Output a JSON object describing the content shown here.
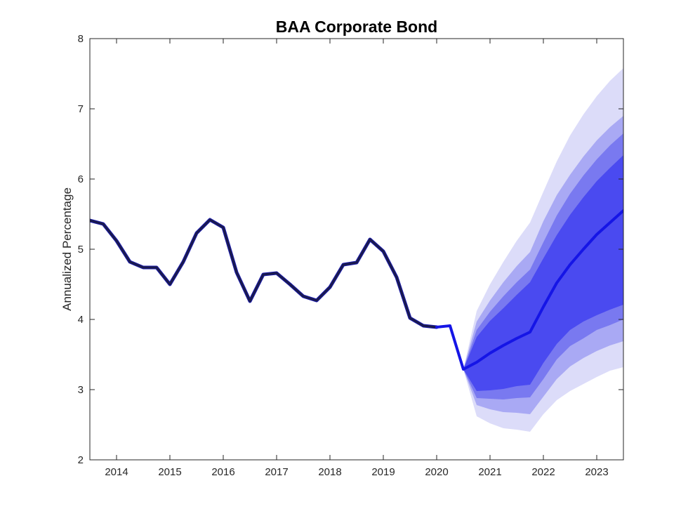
{
  "chart_data": {
    "type": "line",
    "title": "BAA Corporate Bond",
    "xlabel": "",
    "ylabel": "Annualized Percentage",
    "xlim": [
      2013.5,
      2023.5
    ],
    "ylim": [
      2,
      8
    ],
    "xticks": [
      2014,
      2015,
      2016,
      2017,
      2018,
      2019,
      2020,
      2021,
      2022,
      2023
    ],
    "yticks": [
      2,
      3,
      4,
      5,
      6,
      7,
      8
    ],
    "grid": false,
    "legend": "none",
    "series": [
      {
        "role": "history",
        "color": "#1a1a4d",
        "x": [
          2013.5,
          2013.75,
          2014.0,
          2014.25,
          2014.5,
          2014.75,
          2015.0,
          2015.25,
          2015.5,
          2015.75,
          2016.0,
          2016.25,
          2016.5,
          2016.75,
          2017.0,
          2017.25,
          2017.5,
          2017.75,
          2018.0,
          2018.25,
          2018.5,
          2018.75,
          2019.0,
          2019.25,
          2019.5,
          2019.75,
          2020.0
        ],
        "y": [
          5.41,
          5.36,
          5.12,
          4.82,
          4.74,
          4.74,
          4.5,
          4.82,
          5.23,
          5.42,
          5.31,
          4.67,
          4.26,
          4.64,
          4.66,
          4.5,
          4.33,
          4.27,
          4.46,
          4.78,
          4.81,
          5.14,
          4.97,
          4.6,
          4.02,
          3.91,
          3.89
        ]
      },
      {
        "role": "forecast-median",
        "color": "#1515e6",
        "x": [
          2020.0,
          2020.25,
          2020.5,
          2020.75,
          2021.0,
          2021.25,
          2021.5,
          2021.75,
          2022.0,
          2022.25,
          2022.5,
          2022.75,
          2023.0,
          2023.25,
          2023.5
        ],
        "y": [
          3.89,
          3.91,
          3.29,
          3.39,
          3.52,
          3.63,
          3.73,
          3.82,
          4.18,
          4.52,
          4.78,
          5.0,
          5.21,
          5.38,
          5.55
        ]
      }
    ],
    "bands": [
      {
        "color": "#dcdcf9",
        "x": [
          2020.5,
          2020.75,
          2021.0,
          2021.25,
          2021.5,
          2021.75,
          2022.0,
          2022.25,
          2022.5,
          2022.75,
          2023.0,
          2023.25,
          2023.5
        ],
        "lower": [
          3.29,
          2.62,
          2.52,
          2.45,
          2.43,
          2.4,
          2.65,
          2.85,
          2.98,
          3.08,
          3.18,
          3.27,
          3.32
        ],
        "upper": [
          3.29,
          4.12,
          4.5,
          4.82,
          5.12,
          5.38,
          5.82,
          6.25,
          6.62,
          6.92,
          7.18,
          7.4,
          7.58
        ]
      },
      {
        "color": "#a9a9f4",
        "x": [
          2020.5,
          2020.75,
          2021.0,
          2021.25,
          2021.5,
          2021.75,
          2022.0,
          2022.25,
          2022.5,
          2022.75,
          2023.0,
          2023.25,
          2023.5
        ],
        "lower": [
          3.29,
          2.78,
          2.72,
          2.68,
          2.67,
          2.65,
          2.9,
          3.15,
          3.33,
          3.45,
          3.55,
          3.63,
          3.69
        ],
        "upper": [
          3.29,
          3.97,
          4.27,
          4.53,
          4.76,
          4.96,
          5.4,
          5.77,
          6.06,
          6.32,
          6.55,
          6.74,
          6.9
        ]
      },
      {
        "color": "#7979f0",
        "x": [
          2020.5,
          2020.75,
          2021.0,
          2021.25,
          2021.5,
          2021.75,
          2022.0,
          2022.25,
          2022.5,
          2022.75,
          2023.0,
          2023.25,
          2023.5
        ],
        "lower": [
          3.29,
          2.88,
          2.87,
          2.86,
          2.88,
          2.89,
          3.15,
          3.43,
          3.62,
          3.73,
          3.85,
          3.92,
          4.0
        ],
        "upper": [
          3.29,
          3.85,
          4.11,
          4.33,
          4.53,
          4.71,
          5.1,
          5.48,
          5.79,
          6.05,
          6.28,
          6.48,
          6.65
        ]
      },
      {
        "color": "#4a4af0",
        "x": [
          2020.5,
          2020.75,
          2021.0,
          2021.25,
          2021.5,
          2021.75,
          2022.0,
          2022.25,
          2022.5,
          2022.75,
          2023.0,
          2023.25,
          2023.5
        ],
        "lower": [
          3.29,
          2.98,
          2.99,
          3.01,
          3.05,
          3.07,
          3.38,
          3.65,
          3.85,
          3.97,
          4.06,
          4.14,
          4.21
        ],
        "upper": [
          3.29,
          3.75,
          3.98,
          4.16,
          4.35,
          4.53,
          4.87,
          5.2,
          5.49,
          5.74,
          5.97,
          6.16,
          6.34
        ]
      }
    ]
  }
}
